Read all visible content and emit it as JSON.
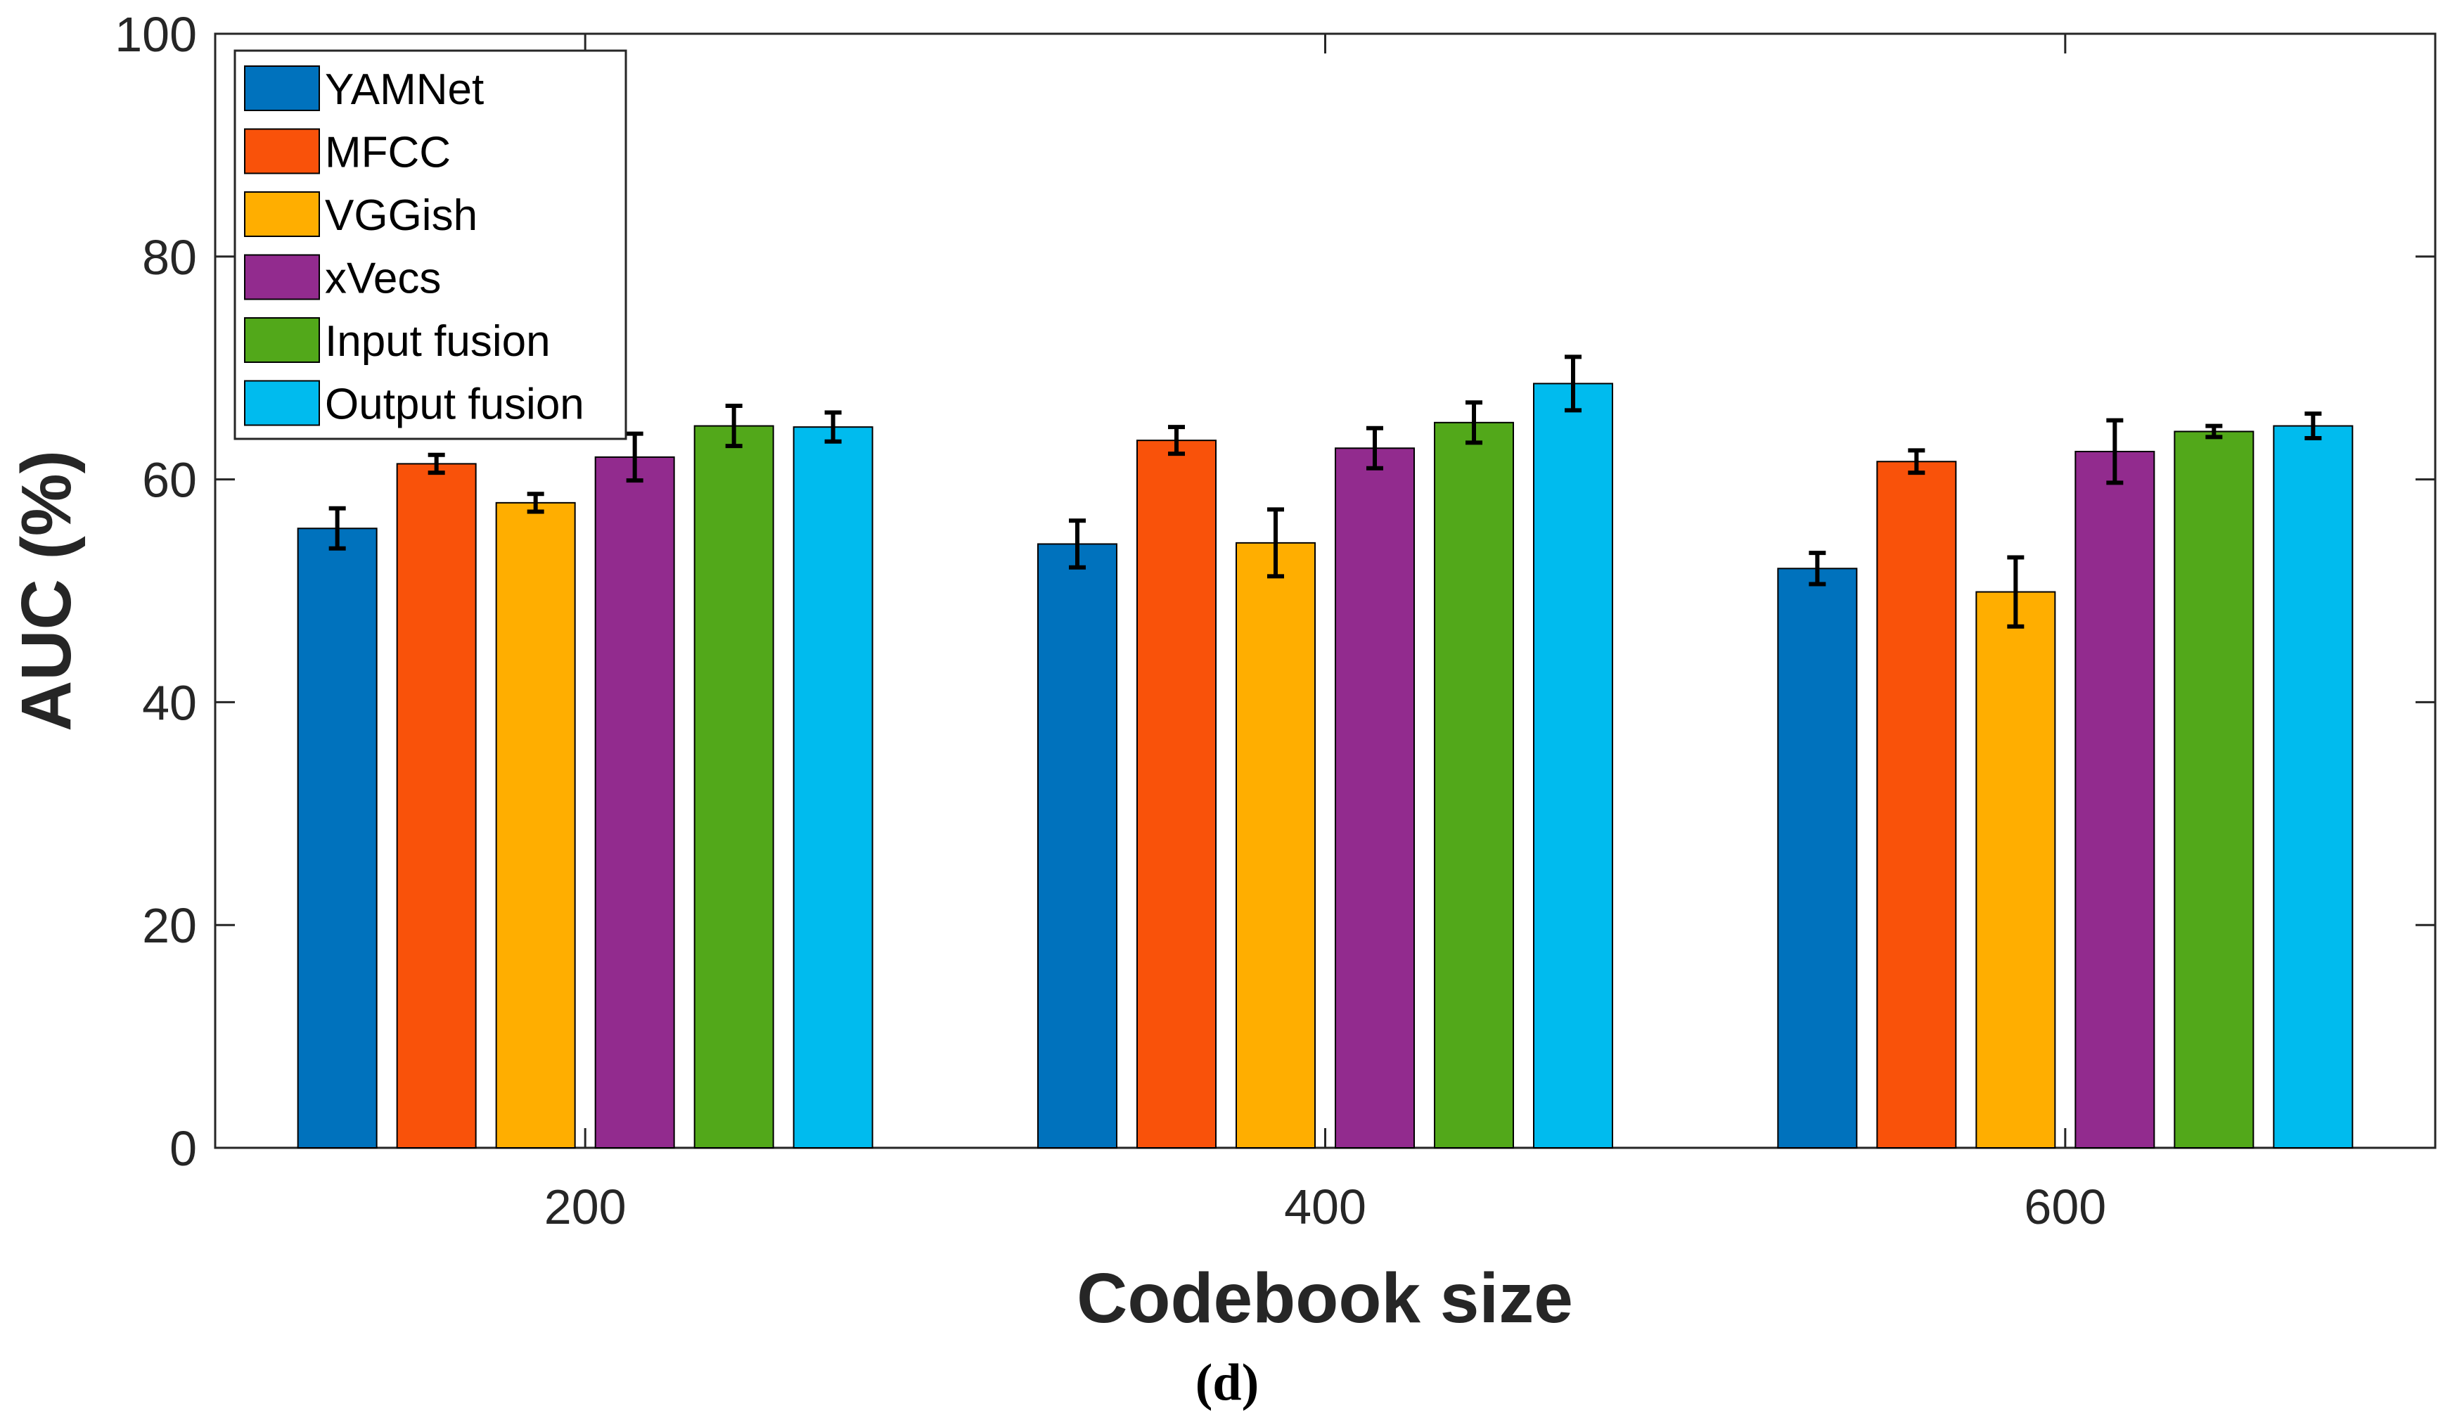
{
  "chart_data": {
    "type": "bar",
    "title": "",
    "caption": "(d)",
    "xlabel": "Codebook size",
    "ylabel": "AUC (%)",
    "ylim": [
      0,
      100
    ],
    "yticks": [
      "0",
      "20",
      "40",
      "60",
      "80",
      "100"
    ],
    "categories": [
      "200",
      "400",
      "600"
    ],
    "grid": false,
    "legend_position": "top-left",
    "series": [
      {
        "name": "YAMNet",
        "color": "#0072BD",
        "values": [
          55.6,
          54.2,
          52.0
        ],
        "errors": [
          1.8,
          2.1,
          1.4
        ]
      },
      {
        "name": "MFCC",
        "color": "#F9520A",
        "values": [
          61.4,
          63.5,
          61.6
        ],
        "errors": [
          0.8,
          1.2,
          1.0
        ]
      },
      {
        "name": "VGGish",
        "color": "#FFAE00",
        "values": [
          57.9,
          54.3,
          49.9
        ],
        "errors": [
          0.8,
          3.0,
          3.1
        ]
      },
      {
        "name": "xVecs",
        "color": "#922B8E",
        "values": [
          62.0,
          62.8,
          62.5
        ],
        "errors": [
          2.1,
          1.8,
          2.8
        ]
      },
      {
        "name": "Input fusion",
        "color": "#52A81A",
        "values": [
          64.8,
          65.1,
          64.3
        ],
        "errors": [
          1.8,
          1.8,
          0.5
        ]
      },
      {
        "name": "Output fusion",
        "color": "#00BBEE",
        "values": [
          64.7,
          68.6,
          64.8
        ],
        "errors": [
          1.3,
          2.4,
          1.1
        ]
      }
    ]
  }
}
